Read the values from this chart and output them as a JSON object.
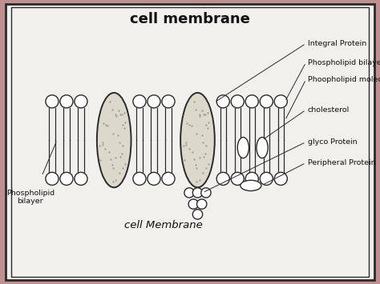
{
  "title": "cell membrane",
  "bg_outer": "#c8909090",
  "bg_paper": "#f2f0ec",
  "border_color": "#1a1a1a",
  "line_color": "#2a2a2a",
  "text_color": "#111111",
  "labels": {
    "integral_protein": "Integral Protein",
    "phospholipid_bilayer": "Phospholipid bilayer",
    "phospholipid_molecules": "Phoopholipid molecules",
    "cholesterol": "cholesterol",
    "glyco_protein": "glyco Protein",
    "peripheral_protein": "Peripheral Protein",
    "bilayer_left": "Phospholipid\nbilayer",
    "center_label": "cell Membrane"
  }
}
